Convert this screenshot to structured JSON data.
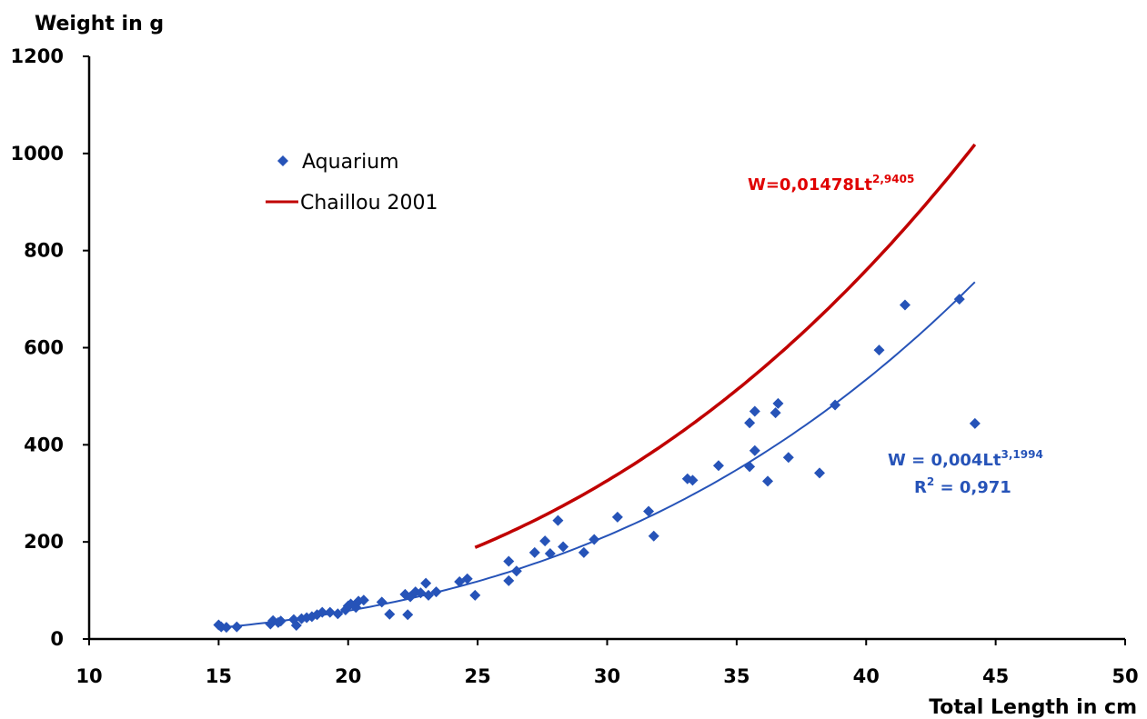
{
  "chart_data": {
    "type": "scatter",
    "xlabel": "Total Length in cm",
    "ylabel": "Weight in g",
    "xlim": [
      10,
      50
    ],
    "ylim": [
      0,
      1200
    ],
    "xticks": [
      10,
      15,
      20,
      25,
      30,
      35,
      40,
      45,
      50
    ],
    "yticks": [
      0,
      200,
      400,
      600,
      800,
      1000,
      1200
    ],
    "grid": false,
    "legend_position": "top-left",
    "colors": {
      "scatter": "#2653b8",
      "reference_line": "#c00000",
      "trend_line": "#2653b8"
    },
    "series": [
      {
        "name": "Aquarium",
        "kind": "scatter",
        "marker": "diamond",
        "points": [
          [
            15.0,
            29
          ],
          [
            15.1,
            25
          ],
          [
            15.3,
            24
          ],
          [
            15.7,
            25
          ],
          [
            17.0,
            31
          ],
          [
            17.1,
            38
          ],
          [
            17.3,
            34
          ],
          [
            17.4,
            37
          ],
          [
            17.9,
            40
          ],
          [
            18.0,
            28
          ],
          [
            18.2,
            42
          ],
          [
            18.4,
            44
          ],
          [
            18.6,
            46
          ],
          [
            18.8,
            50
          ],
          [
            19.0,
            55
          ],
          [
            19.3,
            55
          ],
          [
            19.6,
            52
          ],
          [
            19.9,
            60
          ],
          [
            20.0,
            68
          ],
          [
            20.1,
            72
          ],
          [
            20.3,
            65
          ],
          [
            20.4,
            78
          ],
          [
            20.6,
            80
          ],
          [
            21.3,
            76
          ],
          [
            21.6,
            51
          ],
          [
            22.2,
            92
          ],
          [
            22.3,
            50
          ],
          [
            22.4,
            87
          ],
          [
            22.6,
            97
          ],
          [
            22.8,
            95
          ],
          [
            23.0,
            115
          ],
          [
            23.1,
            90
          ],
          [
            23.4,
            97
          ],
          [
            24.3,
            118
          ],
          [
            24.6,
            124
          ],
          [
            24.9,
            90
          ],
          [
            26.2,
            160
          ],
          [
            26.2,
            120
          ],
          [
            26.5,
            140
          ],
          [
            27.2,
            178
          ],
          [
            27.6,
            202
          ],
          [
            27.8,
            176
          ],
          [
            28.1,
            244
          ],
          [
            28.3,
            190
          ],
          [
            29.1,
            178
          ],
          [
            29.5,
            205
          ],
          [
            30.4,
            251
          ],
          [
            31.6,
            263
          ],
          [
            31.8,
            212
          ],
          [
            33.1,
            330
          ],
          [
            33.3,
            327
          ],
          [
            34.3,
            357
          ],
          [
            35.5,
            445
          ],
          [
            35.5,
            355
          ],
          [
            35.7,
            469
          ],
          [
            35.7,
            388
          ],
          [
            36.2,
            325
          ],
          [
            36.5,
            466
          ],
          [
            36.6,
            485
          ],
          [
            37.0,
            374
          ],
          [
            38.2,
            342
          ],
          [
            38.8,
            482
          ],
          [
            40.5,
            595
          ],
          [
            41.5,
            688
          ],
          [
            43.6,
            700
          ],
          [
            44.2,
            444
          ]
        ]
      },
      {
        "name": "Chaillou 2001",
        "kind": "line",
        "formula": {
          "a": 0.01478,
          "b": 2.9405
        },
        "x_range": [
          24.9,
          44.2
        ]
      },
      {
        "kind": "trendline",
        "formula": {
          "a": 0.004,
          "b": 3.1994
        },
        "x_range": [
          15.0,
          44.2
        ]
      }
    ],
    "annotations": [
      {
        "text_main": "W=0,01478Lt",
        "text_sup": "2,9405",
        "color": "#e00000"
      },
      {
        "text_main": "W = 0,004Lt",
        "text_sup": "3,1994",
        "color": "#2653b8"
      },
      {
        "text_main": "R",
        "text_sup": "2",
        "text_tail": " = 0,971",
        "color": "#2653b8"
      }
    ]
  }
}
